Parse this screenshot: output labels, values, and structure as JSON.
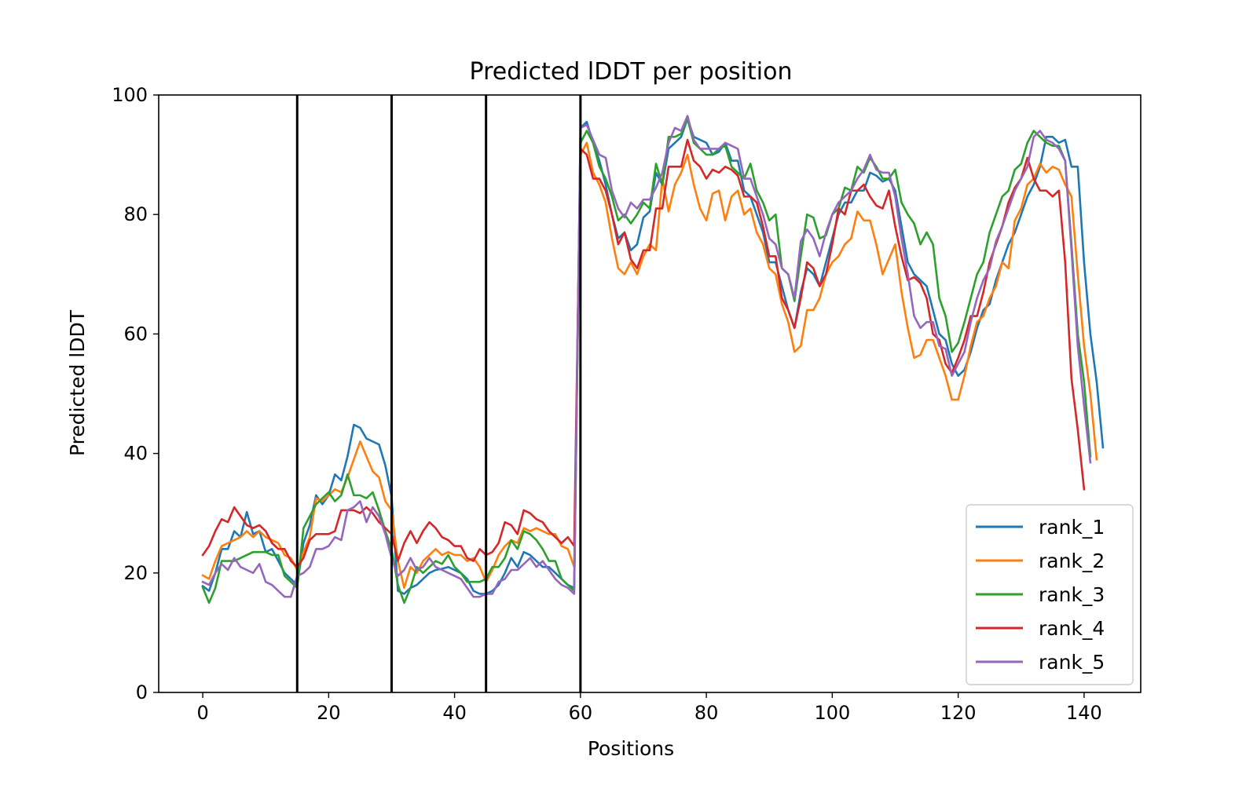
{
  "chart_data": {
    "type": "line",
    "title": "Predicted lDDT per position",
    "xlabel": "Positions",
    "ylabel": "Predicted lDDT",
    "xlim": [
      -7,
      149
    ],
    "ylim": [
      0,
      100
    ],
    "xticks": [
      0,
      20,
      40,
      60,
      80,
      100,
      120,
      140
    ],
    "yticks": [
      0,
      20,
      40,
      60,
      80,
      100
    ],
    "grid": false,
    "legend_position": "lower-right",
    "vertical_lines": [
      15,
      30,
      45,
      60
    ],
    "series": [
      {
        "name": "rank_1",
        "color": "#1f77b4",
        "values": [
          17.8,
          17.0,
          20.0,
          24.0,
          24.0,
          27.0,
          26.0,
          30.2,
          26.5,
          27.0,
          23.5,
          24.0,
          22.0,
          20.0,
          19.0,
          18.0,
          25.0,
          28.0,
          33.0,
          31.5,
          33.0,
          36.5,
          35.5,
          39.5,
          44.8,
          44.3,
          42.5,
          42.0,
          41.5,
          38.0,
          32.8,
          17.0,
          16.5,
          17.5,
          18.0,
          19.0,
          20.0,
          20.5,
          20.7,
          21.0,
          20.5,
          20.0,
          19.0,
          17.0,
          16.5,
          16.5,
          17.0,
          18.0,
          20.0,
          22.5,
          21.0,
          23.5,
          23.0,
          22.0,
          21.0,
          21.0,
          20.0,
          19.0,
          18.0,
          17.5,
          94.5,
          95.5,
          92.0,
          89.0,
          85.0,
          80.0,
          76.0,
          77.0,
          74.0,
          75.0,
          79.5,
          80.5,
          87.0,
          85.0,
          91.0,
          92.0,
          93.0,
          96.0,
          93.0,
          92.5,
          92.0,
          90.0,
          90.5,
          92.0,
          89.0,
          89.0,
          84.0,
          83.0,
          80.0,
          77.0,
          72.0,
          72.0,
          68.0,
          64.0,
          61.0,
          67.0,
          71.0,
          70.0,
          68.0,
          72.0,
          76.0,
          80.0,
          82.0,
          82.0,
          84.0,
          84.0,
          87.0,
          86.5,
          85.5,
          86.0,
          84.0,
          78.0,
          72.0,
          70.0,
          69.0,
          68.0,
          64.0,
          60.0,
          59.0,
          55.0,
          53.0,
          54.0,
          57.0,
          61.0,
          64.0,
          65.0,
          69.0,
          72.0,
          75.0,
          77.0,
          80.0,
          83.0,
          85.0,
          88.0,
          93.0,
          93.0,
          92.0,
          92.5,
          88.0,
          88.0,
          72.0,
          60.0,
          52.0,
          41.0
        ]
      },
      {
        "name": "rank_2",
        "color": "#ff7f0e",
        "values": [
          19.6,
          19.0,
          22.0,
          24.5,
          25.0,
          25.5,
          26.0,
          27.0,
          26.0,
          27.0,
          26.0,
          25.5,
          25.0,
          23.0,
          22.5,
          20.5,
          23.5,
          26.0,
          32.5,
          32.0,
          33.0,
          34.0,
          33.5,
          36.0,
          39.0,
          42.0,
          39.5,
          37.0,
          36.0,
          32.0,
          30.5,
          22.0,
          17.5,
          21.0,
          20.0,
          22.0,
          23.0,
          24.0,
          23.0,
          23.5,
          23.0,
          23.0,
          22.0,
          22.5,
          21.0,
          18.5,
          20.5,
          23.0,
          24.5,
          25.5,
          25.0,
          27.5,
          27.0,
          27.5,
          27.0,
          26.5,
          26.5,
          24.5,
          24.0,
          21.0,
          90.0,
          92.0,
          87.0,
          85.0,
          82.0,
          76.0,
          71.0,
          70.0,
          72.0,
          70.0,
          73.0,
          75.0,
          74.0,
          86.0,
          80.5,
          85.0,
          87.0,
          90.0,
          85.0,
          81.0,
          79.0,
          83.5,
          84.0,
          79.0,
          83.0,
          84.0,
          80.0,
          81.0,
          77.0,
          75.0,
          71.0,
          70.0,
          65.0,
          62.0,
          57.0,
          58.0,
          64.0,
          64.0,
          66.0,
          70.0,
          72.0,
          73.0,
          75.0,
          76.0,
          80.5,
          79.0,
          79.0,
          75.0,
          70.0,
          72.5,
          75.0,
          67.0,
          61.0,
          56.0,
          56.5,
          59.0,
          59.0,
          56.0,
          53.0,
          49.0,
          49.0,
          53.0,
          58.0,
          62.0,
          63.0,
          66.0,
          68.0,
          72.0,
          71.0,
          79.0,
          81.0,
          85.0,
          86.0,
          88.5,
          87.0,
          88.0,
          87.5,
          85.0,
          83.0,
          70.0,
          58.0,
          50.0,
          39.0
        ]
      },
      {
        "name": "rank_3",
        "color": "#2ca02c",
        "values": [
          17.6,
          15.0,
          17.5,
          22.0,
          22.0,
          22.0,
          22.5,
          23.0,
          23.5,
          23.5,
          23.5,
          23.0,
          23.0,
          19.5,
          18.5,
          17.5,
          27.5,
          29.5,
          31.5,
          32.5,
          33.5,
          32.0,
          33.0,
          36.5,
          33.0,
          33.0,
          32.5,
          33.5,
          30.5,
          27.0,
          24.0,
          18.0,
          15.0,
          17.5,
          21.0,
          20.0,
          21.0,
          22.0,
          21.5,
          23.0,
          21.0,
          20.0,
          18.5,
          18.5,
          18.5,
          19.0,
          21.0,
          21.0,
          22.5,
          25.5,
          24.0,
          27.0,
          26.5,
          25.5,
          24.0,
          22.0,
          22.0,
          19.0,
          18.0,
          17.0,
          92.0,
          94.0,
          92.0,
          88.0,
          86.0,
          83.0,
          79.0,
          80.0,
          78.5,
          80.0,
          82.0,
          81.0,
          88.5,
          85.0,
          93.0,
          93.0,
          93.5,
          96.0,
          92.0,
          91.0,
          90.0,
          90.0,
          91.0,
          91.5,
          88.0,
          87.0,
          86.0,
          88.5,
          84.0,
          82.0,
          79.0,
          80.0,
          71.0,
          70.0,
          65.5,
          73.0,
          80.0,
          79.5,
          76.0,
          76.5,
          80.0,
          81.0,
          84.5,
          84.0,
          88.0,
          87.0,
          89.5,
          88.0,
          86.0,
          86.0,
          87.5,
          82.0,
          80.0,
          78.5,
          75.0,
          77.0,
          75.0,
          66.0,
          63.0,
          57.0,
          58.5,
          62.0,
          66.0,
          70.0,
          72.0,
          77.0,
          80.0,
          83.0,
          84.0,
          87.5,
          88.5,
          92.0,
          94.0,
          93.0,
          92.0,
          91.5,
          91.5,
          89.0,
          75.0,
          60.0,
          52.0,
          39.5
        ]
      },
      {
        "name": "rank_4",
        "color": "#d62728",
        "values": [
          23.0,
          24.5,
          27.0,
          29.0,
          28.5,
          31.0,
          29.5,
          28.0,
          27.5,
          28.0,
          27.0,
          25.0,
          24.0,
          24.0,
          22.0,
          21.0,
          22.5,
          25.5,
          26.5,
          26.5,
          26.5,
          27.0,
          30.5,
          30.5,
          30.5,
          30.0,
          31.0,
          30.0,
          28.5,
          27.5,
          26.5,
          22.0,
          25.0,
          27.0,
          25.0,
          27.0,
          28.5,
          27.5,
          26.0,
          25.5,
          24.5,
          24.5,
          22.5,
          22.0,
          24.0,
          23.0,
          23.5,
          25.0,
          28.5,
          28.0,
          26.5,
          30.5,
          30.0,
          29.0,
          28.5,
          27.0,
          26.0,
          25.0,
          26.0,
          24.5,
          91.0,
          90.0,
          86.0,
          86.0,
          84.0,
          80.0,
          75.0,
          77.0,
          72.5,
          71.0,
          74.0,
          74.0,
          81.0,
          81.0,
          88.0,
          88.0,
          88.0,
          92.5,
          89.0,
          88.0,
          86.0,
          87.5,
          87.0,
          88.0,
          87.5,
          86.5,
          83.0,
          83.0,
          82.0,
          78.0,
          73.0,
          73.0,
          66.0,
          64.0,
          61.0,
          66.0,
          72.0,
          71.0,
          68.0,
          70.0,
          75.0,
          81.0,
          80.0,
          84.0,
          84.0,
          85.0,
          83.0,
          81.5,
          81.0,
          84.0,
          78.0,
          73.0,
          69.0,
          69.5,
          68.5,
          66.0,
          60.0,
          59.0,
          55.0,
          53.5,
          56.0,
          59.0,
          63.0,
          63.0,
          67.0,
          72.0,
          75.0,
          78.0,
          82.0,
          84.5,
          86.0,
          89.5,
          86.0,
          84.0,
          84.0,
          83.0,
          84.0,
          72.0,
          52.5,
          44.0,
          34.0
        ]
      },
      {
        "name": "rank_5",
        "color": "#9467bd",
        "values": [
          18.5,
          18.0,
          20.0,
          21.5,
          20.5,
          22.5,
          21.0,
          20.5,
          20.0,
          21.5,
          18.5,
          18.0,
          17.0,
          16.0,
          16.0,
          19.5,
          20.0,
          21.0,
          24.0,
          24.0,
          24.5,
          26.0,
          25.5,
          30.5,
          31.0,
          32.0,
          28.5,
          31.0,
          29.5,
          26.5,
          22.5,
          19.5,
          20.5,
          22.5,
          20.5,
          21.0,
          22.5,
          21.0,
          20.5,
          20.0,
          19.5,
          19.0,
          17.5,
          16.0,
          16.0,
          16.5,
          16.5,
          18.5,
          19.0,
          20.5,
          20.5,
          21.5,
          22.5,
          21.0,
          22.0,
          20.5,
          19.0,
          18.0,
          17.5,
          16.5,
          94.5,
          95.0,
          92.5,
          90.0,
          89.5,
          84.0,
          81.0,
          79.5,
          82.0,
          81.0,
          82.5,
          82.5,
          84.5,
          87.0,
          92.0,
          94.5,
          94.0,
          96.5,
          92.5,
          91.0,
          91.0,
          91.0,
          91.0,
          92.0,
          91.5,
          91.0,
          86.0,
          86.0,
          83.0,
          80.0,
          76.0,
          75.0,
          71.0,
          70.0,
          66.0,
          75.5,
          77.5,
          76.0,
          73.0,
          77.0,
          80.0,
          82.0,
          83.0,
          84.0,
          86.0,
          87.5,
          90.0,
          87.5,
          87.0,
          87.0,
          83.0,
          76.0,
          70.0,
          63.0,
          61.0,
          62.0,
          62.0,
          58.0,
          57.5,
          53.0,
          55.0,
          57.0,
          62.0,
          66.0,
          69.0,
          71.0,
          75.5,
          78.0,
          81.0,
          84.0,
          86.0,
          88.0,
          93.0,
          94.0,
          92.5,
          92.0,
          91.0,
          89.0,
          74.0,
          58.0,
          48.0,
          38.5
        ]
      }
    ]
  }
}
